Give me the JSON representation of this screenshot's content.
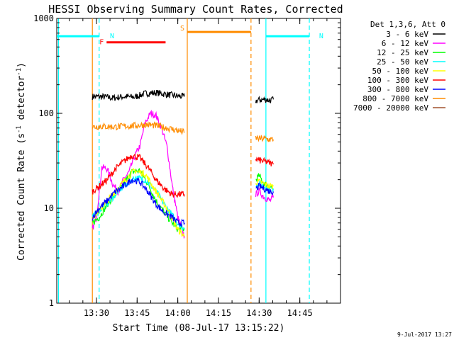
{
  "chart_data": {
    "type": "line",
    "title": "HESSI Observing Summary Count Rates, Corrected",
    "xlabel": "Start Time (08-Jul-17 13:15:22)",
    "ylabel_main": "Corrected Count Rate (s",
    "ylabel_sup1": "-1",
    "ylabel_mid": " detector",
    "ylabel_sup2": "-1",
    "ylabel_end": ")",
    "yscale": "log",
    "xlim": [
      "13:15:22",
      "15:00:00"
    ],
    "ylim": [
      1,
      1000
    ],
    "x_ticks": [
      "13:30",
      "13:45",
      "14:00",
      "14:15",
      "14:30",
      "14:45"
    ],
    "y_ticks": [
      "1",
      "10",
      "100",
      "1000"
    ],
    "legend_position": "top-right",
    "legend_header": "Det 1,3,6, Att 0",
    "footer_date": "9-Jul-2017 13:27",
    "series": [
      {
        "name": "3 - 6 keV",
        "color": "#000000",
        "segments": [
          {
            "x": [
              "13:28:30",
              "13:32",
              "13:36",
              "13:40",
              "13:44",
              "13:48",
              "13:52",
              "13:56",
              "14:00",
              "14:02:30"
            ],
            "y": [
              150,
              150,
              145,
              150,
              148,
              162,
              165,
              158,
              152,
              150
            ]
          },
          {
            "x": [
              "14:28:45",
              "14:30",
              "14:32",
              "14:34",
              "14:35:15"
            ],
            "y": [
              135,
              138,
              140,
              137,
              140
            ]
          }
        ]
      },
      {
        "name": "6 - 12 keV",
        "color": "#ff00ff",
        "segments": [
          {
            "x": [
              "13:28:30",
              "13:30",
              "13:32",
              "13:34",
              "13:36",
              "13:38",
              "13:40",
              "13:42",
              "13:44",
              "13:46",
              "13:48",
              "13:50",
              "13:52",
              "13:54",
              "13:56",
              "13:58",
              "14:00",
              "14:02:30"
            ],
            "y": [
              6,
              8,
              27,
              26,
              18,
              15,
              20,
              24,
              35,
              45,
              80,
              100,
              95,
              70,
              45,
              17,
              8,
              5
            ]
          },
          {
            "x": [
              "14:28:45",
              "14:30",
              "14:32",
              "14:34",
              "14:35:15"
            ],
            "y": [
              14,
              15,
              13,
              12,
              13
            ]
          }
        ]
      },
      {
        "name": "12 - 25 keV",
        "color": "#00ff00",
        "segments": [
          {
            "x": [
              "13:28:30",
              "13:31",
              "13:34",
              "13:37",
              "13:40",
              "13:43",
              "13:46",
              "13:49",
              "13:52",
              "13:55",
              "13:58",
              "14:00",
              "14:02:30"
            ],
            "y": [
              7,
              8,
              11,
              14,
              18,
              24,
              25,
              18,
              12,
              9,
              7,
              6,
              6
            ]
          },
          {
            "x": [
              "14:28:45",
              "14:30",
              "14:32",
              "14:34",
              "14:35:15"
            ],
            "y": [
              20,
              22,
              18,
              17,
              16
            ]
          }
        ]
      },
      {
        "name": "25 - 50 keV",
        "color": "#00ffff",
        "segments": [
          {
            "x": [
              "13:28:30",
              "13:32",
              "13:36",
              "13:40",
              "13:44",
              "13:48",
              "13:52",
              "13:56",
              "14:00",
              "14:02:30"
            ],
            "y": [
              8,
              10,
              13,
              17,
              21,
              20,
              15,
              10,
              7,
              6
            ]
          },
          {
            "x": [
              "14:28:45",
              "14:30",
              "14:32",
              "14:34",
              "14:35:15"
            ],
            "y": [
              18,
              18,
              17,
              16,
              16
            ]
          }
        ]
      },
      {
        "name": "50 - 100 keV",
        "color": "#ffff00",
        "segments": [
          {
            "x": [
              "13:28:30",
              "13:32",
              "13:36",
              "13:40",
              "13:44",
              "13:48",
              "13:52",
              "13:56",
              "14:00",
              "14:02:30"
            ],
            "y": [
              8,
              10,
              14,
              19,
              25,
              23,
              15,
              10,
              6,
              5
            ]
          },
          {
            "x": [
              "14:28:45",
              "14:30",
              "14:32",
              "14:34",
              "14:35:15"
            ],
            "y": [
              19,
              19,
              18,
              17,
              17
            ]
          }
        ]
      },
      {
        "name": "100 - 300 keV",
        "color": "#ff0000",
        "segments": [
          {
            "x": [
              "13:28:30",
              "13:31",
              "13:34",
              "13:37",
              "13:40",
              "13:43",
              "13:46",
              "13:49",
              "13:52",
              "13:55",
              "13:58",
              "14:00",
              "14:02:30"
            ],
            "y": [
              15,
              17,
              20,
              26,
              31,
              36,
              34,
              27,
              20,
              16,
              14,
              14,
              14
            ]
          },
          {
            "x": [
              "14:28:45",
              "14:30",
              "14:32",
              "14:34",
              "14:35:15"
            ],
            "y": [
              33,
              32,
              31,
              30,
              29
            ]
          }
        ]
      },
      {
        "name": "300 - 800 keV",
        "color": "#0000ff",
        "segments": [
          {
            "x": [
              "13:28:30",
              "13:31",
              "13:34",
              "13:37",
              "13:40",
              "13:43",
              "13:46",
              "13:49",
              "13:52",
              "13:55",
              "13:58",
              "14:00",
              "14:02:30"
            ],
            "y": [
              8,
              10,
              12,
              15,
              17,
              20,
              19,
              15,
              11,
              9,
              8,
              7,
              7
            ]
          },
          {
            "x": [
              "14:28:45",
              "14:30",
              "14:32",
              "14:34",
              "14:35:15"
            ],
            "y": [
              16,
              17,
              16,
              15,
              15
            ]
          }
        ]
      },
      {
        "name": "800 - 7000 keV",
        "color": "#ff8c00",
        "segments": [
          {
            "x": [
              "13:28:30",
              "13:32",
              "13:36",
              "13:40",
              "13:44",
              "13:48",
              "13:52",
              "13:56",
              "14:00",
              "14:02:30"
            ],
            "y": [
              72,
              73,
              72,
              73,
              74,
              76,
              74,
              70,
              66,
              63
            ]
          },
          {
            "x": [
              "14:28:45",
              "14:30",
              "14:32",
              "14:34",
              "14:35:15"
            ],
            "y": [
              55,
              54,
              54,
              53,
              53
            ]
          }
        ]
      },
      {
        "name": "7000 - 20000 keV",
        "color": "#a0522d",
        "segments": []
      }
    ],
    "annotations": [
      {
        "label": "F",
        "color": "#ff0000",
        "x_start": "13:33:45",
        "x_end": "13:55:30",
        "y": 560
      },
      {
        "label": "N",
        "color": "#00ffff",
        "x_start": "13:15:22",
        "x_end": "13:31:00",
        "y": 650
      },
      {
        "label": "N",
        "color": "#00ffff",
        "x_start": "14:32:30",
        "x_end": "14:48:30",
        "y": 650
      },
      {
        "label": "S",
        "color": "#ff8c00",
        "x_start": "14:03:30",
        "x_end": "14:27:00",
        "y": 720
      }
    ],
    "vertical_lines": [
      {
        "x": "13:16:00",
        "color": "#00ffff",
        "style": "solid"
      },
      {
        "x": "13:31:00",
        "color": "#00ffff",
        "style": "dashed"
      },
      {
        "x": "14:32:30",
        "color": "#00ffff",
        "style": "solid"
      },
      {
        "x": "14:48:30",
        "color": "#00ffff",
        "style": "dashed"
      },
      {
        "x": "14:03:30",
        "color": "#ff8c00",
        "style": "solid"
      },
      {
        "x": "14:27:00",
        "color": "#ff8c00",
        "style": "dashed"
      },
      {
        "x": "13:28:30",
        "color": "#ff8c00",
        "style": "solid"
      }
    ]
  }
}
